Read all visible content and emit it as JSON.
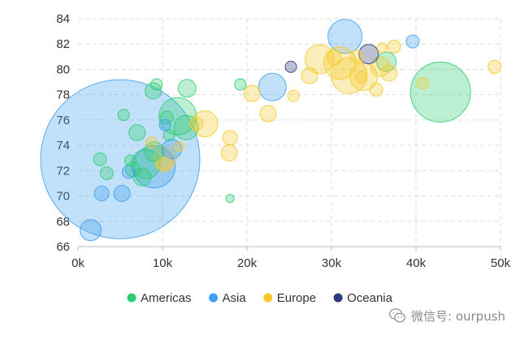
{
  "chart_data": {
    "type": "scatter",
    "xlim": [
      0,
      50000
    ],
    "ylim": [
      66,
      84
    ],
    "x_ticks": [
      0,
      10000,
      20000,
      30000,
      40000,
      50000
    ],
    "x_tick_labels": [
      "0k",
      "10k",
      "20k",
      "30k",
      "40k",
      "50k"
    ],
    "y_ticks": [
      66,
      68,
      70,
      72,
      74,
      76,
      78,
      80,
      82,
      84
    ],
    "y_tick_labels": [
      "66",
      "68",
      "70",
      "72",
      "74",
      "76",
      "78",
      "80",
      "82",
      "84"
    ],
    "grid": true,
    "legend_position": "bottom-center",
    "series": [
      {
        "name": "Americas",
        "color": "#2ecc71",
        "points": [
          {
            "x": 42900,
            "y": 78.2,
            "r": 37
          },
          {
            "x": 11800,
            "y": 76.3,
            "r": 23
          },
          {
            "x": 12800,
            "y": 75.4,
            "r": 15
          },
          {
            "x": 12900,
            "y": 78.5,
            "r": 11
          },
          {
            "x": 8900,
            "y": 78.3,
            "r": 10
          },
          {
            "x": 9300,
            "y": 78.8,
            "r": 7
          },
          {
            "x": 19200,
            "y": 78.8,
            "r": 7
          },
          {
            "x": 18000,
            "y": 69.8,
            "r": 5
          },
          {
            "x": 7000,
            "y": 75.0,
            "r": 10
          },
          {
            "x": 10500,
            "y": 76.2,
            "r": 8
          },
          {
            "x": 8000,
            "y": 72.5,
            "r": 18
          },
          {
            "x": 6500,
            "y": 72.1,
            "r": 9
          },
          {
            "x": 6200,
            "y": 72.8,
            "r": 7
          },
          {
            "x": 9000,
            "y": 73.5,
            "r": 12
          },
          {
            "x": 7600,
            "y": 71.5,
            "r": 11
          },
          {
            "x": 2600,
            "y": 72.9,
            "r": 8
          },
          {
            "x": 3400,
            "y": 71.8,
            "r": 8
          },
          {
            "x": 5400,
            "y": 76.4,
            "r": 7
          },
          {
            "x": 10800,
            "y": 74.8,
            "r": 7
          },
          {
            "x": 36500,
            "y": 80.6,
            "r": 12
          }
        ]
      },
      {
        "name": "Asia",
        "color": "#3ea0f0",
        "points": [
          {
            "x": 5000,
            "y": 72.9,
            "r": 98
          },
          {
            "x": 9000,
            "y": 72.3,
            "r": 26
          },
          {
            "x": 31600,
            "y": 82.6,
            "r": 21
          },
          {
            "x": 23000,
            "y": 78.6,
            "r": 17
          },
          {
            "x": 39600,
            "y": 82.2,
            "r": 8
          },
          {
            "x": 1500,
            "y": 67.3,
            "r": 13
          },
          {
            "x": 2800,
            "y": 70.2,
            "r": 9
          },
          {
            "x": 5200,
            "y": 70.2,
            "r": 10
          },
          {
            "x": 10300,
            "y": 75.6,
            "r": 7
          },
          {
            "x": 6000,
            "y": 71.9,
            "r": 8
          },
          {
            "x": 11100,
            "y": 73.7,
            "r": 12
          }
        ]
      },
      {
        "name": "Europe",
        "color": "#f7c928",
        "points": [
          {
            "x": 28600,
            "y": 80.8,
            "r": 18
          },
          {
            "x": 31000,
            "y": 80.5,
            "r": 20
          },
          {
            "x": 32100,
            "y": 79.5,
            "r": 22
          },
          {
            "x": 33800,
            "y": 79.4,
            "r": 17
          },
          {
            "x": 35800,
            "y": 80.2,
            "r": 12
          },
          {
            "x": 15000,
            "y": 75.7,
            "r": 16
          },
          {
            "x": 18000,
            "y": 74.6,
            "r": 9
          },
          {
            "x": 17900,
            "y": 73.4,
            "r": 10
          },
          {
            "x": 22500,
            "y": 76.5,
            "r": 10
          },
          {
            "x": 20600,
            "y": 78.1,
            "r": 10
          },
          {
            "x": 25500,
            "y": 77.9,
            "r": 7
          },
          {
            "x": 27400,
            "y": 79.5,
            "r": 10
          },
          {
            "x": 30300,
            "y": 80.9,
            "r": 9
          },
          {
            "x": 36800,
            "y": 79.7,
            "r": 10
          },
          {
            "x": 35300,
            "y": 78.4,
            "r": 8
          },
          {
            "x": 37400,
            "y": 81.8,
            "r": 8
          },
          {
            "x": 40800,
            "y": 78.9,
            "r": 7
          },
          {
            "x": 49300,
            "y": 80.2,
            "r": 8
          },
          {
            "x": 33500,
            "y": 79.4,
            "r": 7
          },
          {
            "x": 10300,
            "y": 73.0,
            "r": 14
          },
          {
            "x": 10200,
            "y": 72.5,
            "r": 9
          },
          {
            "x": 14000,
            "y": 75.7,
            "r": 8
          },
          {
            "x": 8700,
            "y": 74.2,
            "r": 7
          },
          {
            "x": 12000,
            "y": 73.9,
            "r": 6
          },
          {
            "x": 36000,
            "y": 81.7,
            "r": 6
          },
          {
            "x": 33000,
            "y": 81.0,
            "r": 8
          }
        ]
      },
      {
        "name": "Oceania",
        "color": "#2b3a7a",
        "points": [
          {
            "x": 34400,
            "y": 81.2,
            "r": 12
          },
          {
            "x": 25200,
            "y": 80.2,
            "r": 7
          }
        ]
      }
    ]
  },
  "watermark": {
    "text": "微信号: ourpush",
    "icon": "wechat-icon"
  }
}
